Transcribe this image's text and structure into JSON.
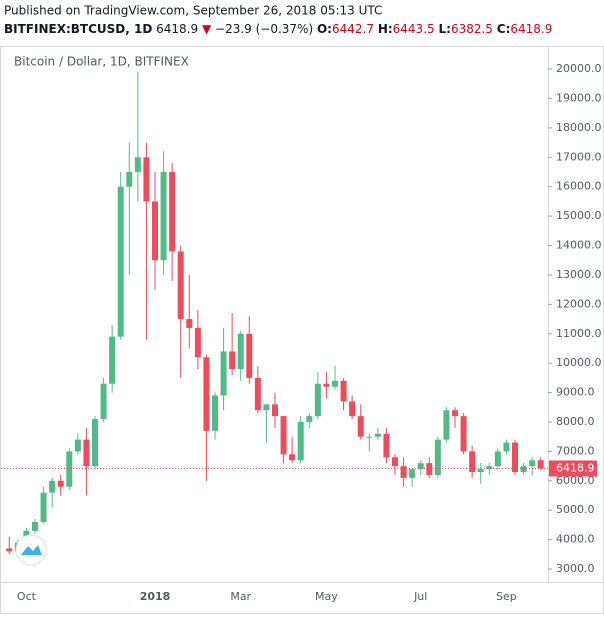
{
  "header": {
    "published": "Published on TradingView.com, September 26, 2018 05:13 UTC",
    "symbol": "BITFINEX:BTCUSD, 1D",
    "price": "6418.9",
    "arrow": "▼",
    "change": "−23.9 (−0.37%)",
    "o_label": "O:",
    "o": "6442.7",
    "h_label": "H:",
    "h": "6443.5",
    "l_label": "L:",
    "l": "6382.5",
    "c_label": "C:",
    "c": "6418.9"
  },
  "chart_data": {
    "type": "candlestick",
    "title": "Bitcoin / Dollar, 1D, BITFINEX",
    "categories": [
      null,
      null,
      "Oct",
      null,
      null,
      null,
      null,
      null,
      null,
      null,
      null,
      null,
      null,
      null,
      null,
      null,
      null,
      "2018",
      null,
      null,
      null,
      null,
      null,
      null,
      null,
      null,
      null,
      "Mar",
      null,
      null,
      null,
      null,
      null,
      null,
      null,
      null,
      null,
      "May",
      null,
      null,
      null,
      null,
      null,
      null,
      null,
      null,
      null,
      null,
      "Jul",
      null,
      null,
      null,
      null,
      null,
      null,
      null,
      null,
      null,
      "Sep",
      null,
      null,
      null,
      null
    ],
    "open": [
      3700,
      3600,
      3900,
      4300,
      4600,
      5600,
      6000,
      5800,
      7000,
      7400,
      6500,
      8100,
      9300,
      10900,
      16000,
      16500,
      17000,
      15500,
      13500,
      16500,
      13800,
      11500,
      11200,
      10200,
      7700,
      8900,
      10400,
      9800,
      11000,
      9500,
      8400,
      8600,
      8200,
      6900,
      6700,
      8000,
      8200,
      9300,
      9200,
      9400,
      8700,
      8200,
      7500,
      7500,
      7600,
      6800,
      6500,
      6100,
      6400,
      6600,
      6200,
      7400,
      8400,
      8200,
      7000,
      6300,
      6400,
      6500,
      7000,
      7300,
      6300,
      6500,
      6700
    ],
    "high": [
      4100,
      4000,
      4400,
      4700,
      5800,
      6100,
      6200,
      7100,
      7600,
      7800,
      8200,
      9500,
      11300,
      16500,
      17500,
      19900,
      17500,
      16500,
      17200,
      16800,
      14000,
      13000,
      11800,
      10300,
      9000,
      11200,
      11700,
      11100,
      11600,
      9900,
      8600,
      9000,
      8200,
      7500,
      8200,
      8300,
      9700,
      9700,
      9900,
      9500,
      8900,
      8600,
      7600,
      7800,
      7800,
      6900,
      6800,
      6400,
      6700,
      6800,
      7500,
      8500,
      8500,
      8300,
      7200,
      6600,
      6600,
      7100,
      7400,
      7400,
      6600,
      6800,
      6800
    ],
    "low": [
      3500,
      3550,
      3850,
      4200,
      4550,
      5100,
      5500,
      5700,
      6900,
      5500,
      6400,
      8000,
      9000,
      10800,
      13000,
      15500,
      10800,
      12500,
      13000,
      12800,
      9500,
      10500,
      9800,
      6000,
      7400,
      8400,
      9600,
      9400,
      9300,
      8300,
      7300,
      7800,
      6600,
      6600,
      6600,
      7800,
      8100,
      8800,
      9100,
      8400,
      8100,
      7400,
      7000,
      7400,
      6600,
      6200,
      5800,
      5800,
      6200,
      6100,
      6100,
      7300,
      7800,
      6900,
      6100,
      5900,
      6200,
      6400,
      6900,
      6200,
      6200,
      6200,
      6380
    ],
    "close": [
      3600,
      3900,
      4300,
      4600,
      5600,
      6000,
      5800,
      7000,
      7400,
      6500,
      8100,
      9300,
      10900,
      16000,
      16500,
      17000,
      15500,
      13500,
      16500,
      13800,
      11500,
      11200,
      10200,
      7700,
      8900,
      10400,
      9800,
      11000,
      9500,
      8400,
      8600,
      8200,
      6900,
      6700,
      8000,
      8200,
      9300,
      9200,
      9400,
      8700,
      8200,
      7500,
      7500,
      7600,
      6800,
      6500,
      6100,
      6400,
      6600,
      6200,
      7400,
      8400,
      8200,
      7000,
      6300,
      6400,
      6500,
      7000,
      7300,
      6300,
      6500,
      6700,
      6419
    ],
    "up_color": "#53b987",
    "down_color": "#eb4d5c",
    "last_price": 6418.9,
    "last_price_color": "#eb4d5c",
    "ylim": [
      2560,
      20750
    ],
    "yticks": [
      {
        "value": 20000,
        "label": "20000.0"
      },
      {
        "value": 19000,
        "label": "19000.0"
      },
      {
        "value": 18000,
        "label": "18000.0"
      },
      {
        "value": 17000,
        "label": "17000.0"
      },
      {
        "value": 16000,
        "label": "16000.0"
      },
      {
        "value": 15000,
        "label": "15000.0"
      },
      {
        "value": 14000,
        "label": "14000.0"
      },
      {
        "value": 13000,
        "label": "13000.0"
      },
      {
        "value": 12000,
        "label": "12000.0"
      },
      {
        "value": 11000,
        "label": "11000.0"
      },
      {
        "value": 10000,
        "label": "10000.0"
      },
      {
        "value": 9000,
        "label": "9000.0"
      },
      {
        "value": 8000,
        "label": "8000.0"
      },
      {
        "value": 7000,
        "label": "7000.0"
      },
      {
        "value": 6000,
        "label": "6000.0"
      },
      {
        "value": 5000,
        "label": "5000.0"
      },
      {
        "value": 4000,
        "label": "4000.0"
      },
      {
        "value": 3000,
        "label": "3000.0"
      }
    ]
  }
}
